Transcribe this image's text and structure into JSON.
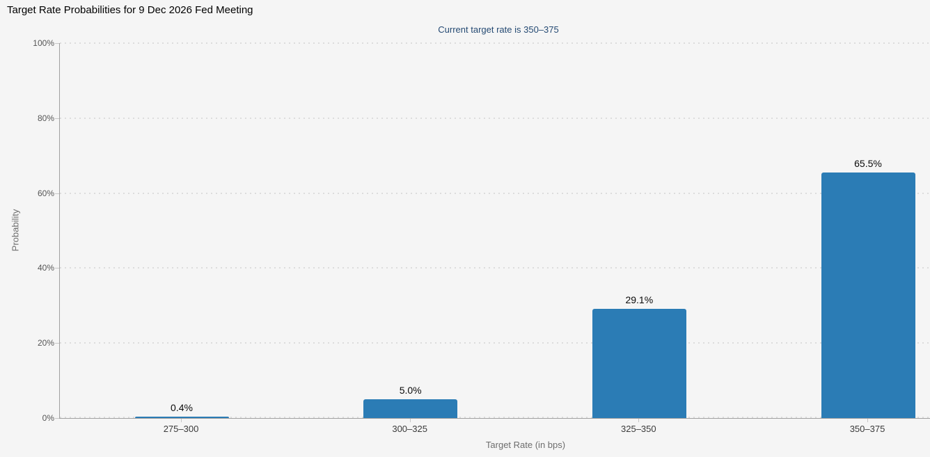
{
  "header": {
    "title": "Target Rate Probabilities for 9 Dec 2026 Fed Meeting",
    "subtitle": "Current target rate is 350–375"
  },
  "colors": {
    "background": "#f5f5f5",
    "bar": "#2b7cb5",
    "subtitle_text": "#254a73",
    "axis_line": "#a0a0a0",
    "grid_dot": "#dcdcdc",
    "tick_label": "#555555",
    "axis_title_text": "#6d6d6d"
  },
  "chart_data": {
    "type": "bar",
    "title": "Target Rate Probabilities for 9 Dec 2026 Fed Meeting",
    "subtitle": "Current target rate is 350–375",
    "categories": [
      "275–300",
      "300–325",
      "325–350",
      "350–375"
    ],
    "values": [
      0.4,
      5.0,
      29.1,
      65.5
    ],
    "value_labels": [
      "0.4%",
      "5.0%",
      "29.1%",
      "65.5%"
    ],
    "xlabel": "Target Rate (in bps)",
    "ylabel": "Probability",
    "ylim": [
      0,
      100
    ],
    "ytick_step": 20,
    "yticks": [
      "0%",
      "20%",
      "40%",
      "60%",
      "80%",
      "100%"
    ],
    "grid": "horizontal-dotted",
    "legend": "none",
    "bar_color": "#2b7cb5"
  }
}
